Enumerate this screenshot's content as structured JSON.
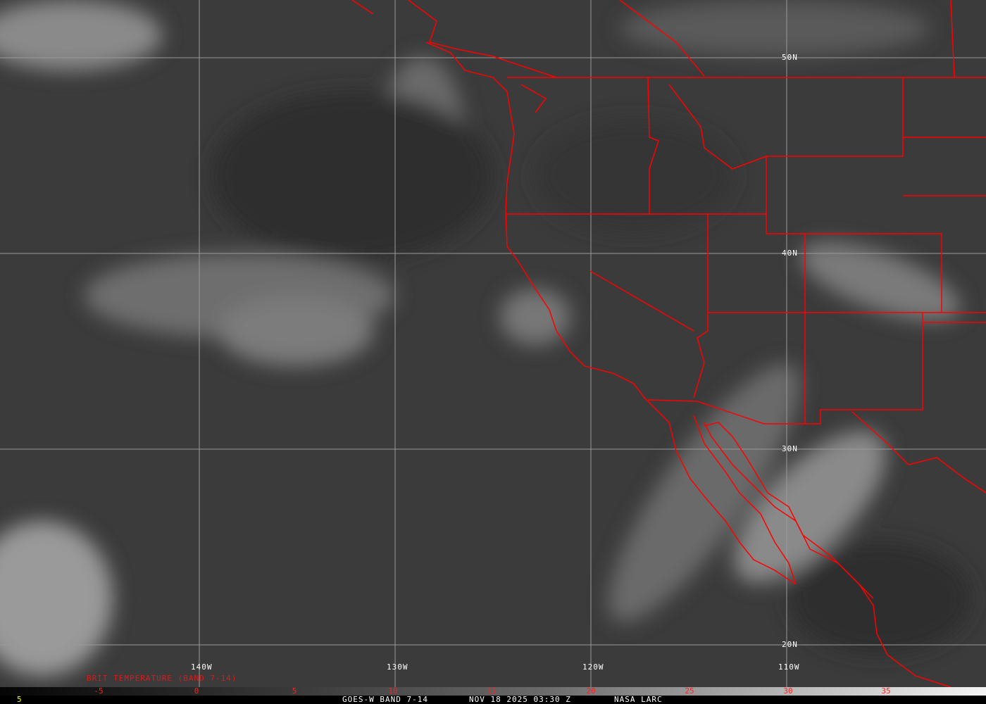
{
  "map": {
    "satellite_view": "GOES-West infrared (Band 7-14) brightness temperature, US West Coast and Eastern Pacific",
    "lat_labels": [
      "50N",
      "40N",
      "30N",
      "20N"
    ],
    "lon_labels": [
      "140W",
      "130W",
      "120W",
      "110W"
    ],
    "overlay_color": "#ff0000",
    "grid_color": "#9a9a9a"
  },
  "colorbar": {
    "title": "BRIT TEMPERATURE (BAND 7-14)",
    "ticks": [
      "-5",
      "0",
      "5",
      "10",
      "15",
      "20",
      "25",
      "30",
      "35"
    ],
    "tick_color": "#ff2020"
  },
  "footer": {
    "left_value": "5",
    "product": "GOES-W BAND 7-14",
    "datetime": "NOV 18 2025 03:30 Z",
    "source": "NASA LARC"
  }
}
